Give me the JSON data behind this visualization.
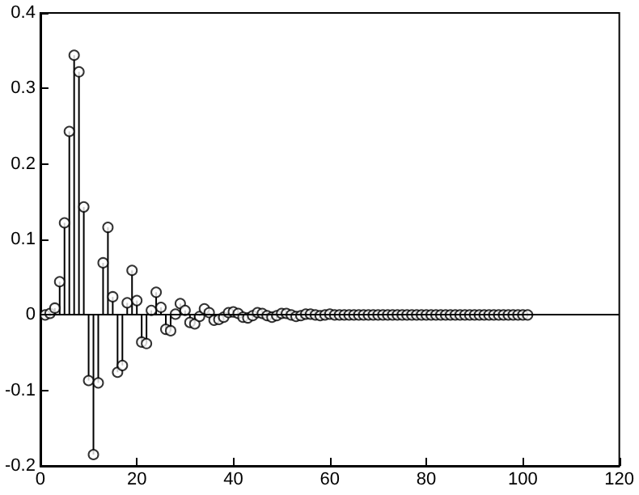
{
  "chart_data": {
    "type": "lollipop",
    "x": [
      1,
      2,
      3,
      4,
      5,
      6,
      7,
      8,
      9,
      10,
      11,
      12,
      13,
      14,
      15,
      16,
      17,
      18,
      19,
      20,
      21,
      22,
      23,
      24,
      25,
      26,
      27,
      28,
      29,
      30,
      31,
      32,
      33,
      34,
      35,
      36,
      37,
      38,
      39,
      40,
      41,
      42,
      43,
      44,
      45,
      46,
      47,
      48,
      49,
      50,
      51,
      52,
      53,
      54,
      55,
      56,
      57,
      58,
      59,
      60,
      61,
      62,
      63,
      64,
      65,
      66,
      67,
      68,
      69,
      70,
      71,
      72,
      73,
      74,
      75,
      76,
      77,
      78,
      79,
      80,
      81,
      82,
      83,
      84,
      85,
      86,
      87,
      88,
      89,
      90,
      91,
      92,
      93,
      94,
      95,
      96,
      97,
      98,
      99,
      100,
      101
    ],
    "values": [
      0,
      0.002,
      0.009,
      0.044,
      0.122,
      0.243,
      0.344,
      0.322,
      0.143,
      -0.087,
      -0.185,
      -0.09,
      0.069,
      0.116,
      0.024,
      -0.076,
      -0.067,
      0.016,
      0.059,
      0.019,
      -0.036,
      -0.038,
      0.006,
      0.03,
      0.01,
      -0.019,
      -0.021,
      0.001,
      0.015,
      0.006,
      -0.01,
      -0.012,
      -0.002,
      0.008,
      0.003,
      -0.007,
      -0.006,
      -0.003,
      0.003,
      0.004,
      0.002,
      -0.003,
      -0.004,
      -0.001,
      0.003,
      0.002,
      -0.001,
      -0.003,
      -0.001,
      0.002,
      0.002,
      0,
      -0.002,
      -0.001,
      0.001,
      0.001,
      0,
      -0.001,
      0,
      0.001,
      0,
      0,
      0,
      0,
      0,
      0,
      0,
      0,
      0,
      0,
      0,
      0,
      0,
      0,
      0,
      0,
      0,
      0,
      0,
      0,
      0,
      0,
      0,
      0,
      0,
      0,
      0,
      0,
      0,
      0,
      0,
      0,
      0,
      0,
      0,
      0,
      0,
      0,
      0,
      0,
      0
    ],
    "color": "#000000",
    "marker": "circle",
    "xlim": [
      0,
      120
    ],
    "xticks": [
      0,
      20,
      40,
      60,
      80,
      100,
      120
    ],
    "ylim": [
      -0.2,
      0.4
    ],
    "yticks": [
      -0.2,
      -0.1,
      0,
      0.1,
      0.2,
      0.3,
      0.4
    ],
    "ref_lines": [
      {
        "axis": "y",
        "value": 0
      }
    ],
    "grid": false
  }
}
